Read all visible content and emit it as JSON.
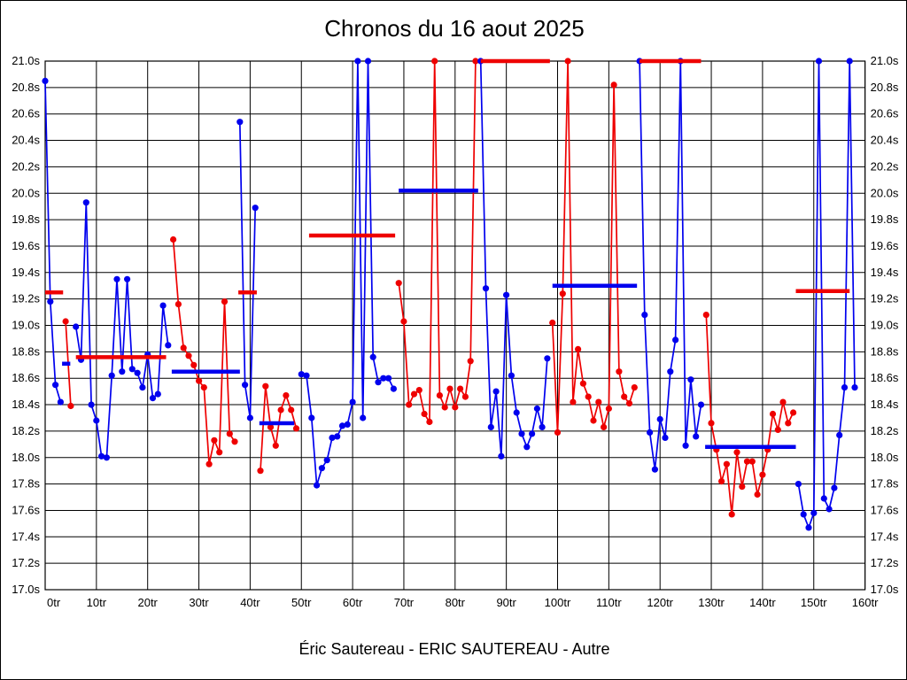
{
  "title": "Chronos du 16 aout 2025",
  "footer": "Éric Sautereau - ERIC SAUTEREAU - Autre",
  "chart_data": {
    "type": "line",
    "title": "Chronos du 16 aout 2025",
    "xlabel_unit": "tr",
    "ylabel_unit": "s",
    "xlim": [
      0,
      160
    ],
    "ylim": [
      17.0,
      21.0
    ],
    "y_step": 0.2,
    "x_step": 10,
    "grid": true,
    "y_tick_labels": [
      "21.0s",
      "20.8s",
      "20.6s",
      "20.4s",
      "20.2s",
      "20.0s",
      "19.8s",
      "19.6s",
      "19.4s",
      "19.2s",
      "19.0s",
      "18.8s",
      "18.6s",
      "18.4s",
      "18.2s",
      "18.0s",
      "17.8s",
      "17.6s",
      "17.4s",
      "17.2s",
      "17.0s"
    ],
    "x_tick_labels": [
      "0tr",
      "10tr",
      "20tr",
      "30tr",
      "40tr",
      "50tr",
      "60tr",
      "70tr",
      "80tr",
      "90tr",
      "100tr",
      "110tr",
      "120tr",
      "130tr",
      "140tr",
      "150tr",
      "160tr"
    ],
    "colors": {
      "blue": "#0000ee",
      "red": "#ee0000"
    },
    "clip_value": 21.0,
    "series": [
      {
        "color": "blue",
        "start_lap": 0,
        "values": [
          20.85,
          19.18,
          18.55,
          18.42
        ]
      },
      {
        "color": "red",
        "start_lap": 4,
        "values": [
          19.03,
          18.39
        ]
      },
      {
        "color": "blue",
        "start_lap": 6,
        "values": [
          18.99,
          18.74,
          19.93,
          18.4,
          18.28,
          18.01,
          18.0,
          18.62,
          19.35,
          18.65,
          19.35,
          18.67,
          18.64,
          18.53,
          18.78,
          18.45,
          18.48,
          19.15,
          18.85
        ]
      },
      {
        "color": "red",
        "start_lap": 25,
        "values": [
          19.65,
          19.16,
          18.83,
          18.77,
          18.7,
          18.58,
          18.53,
          17.95,
          18.13,
          18.04,
          19.18,
          18.18,
          18.12
        ]
      },
      {
        "color": "blue",
        "start_lap": 38,
        "values": [
          20.54,
          18.55,
          18.3,
          19.89
        ]
      },
      {
        "color": "red",
        "start_lap": 42,
        "values": [
          17.9,
          18.54,
          18.23,
          18.09,
          18.36,
          18.47,
          18.36,
          18.22
        ]
      },
      {
        "color": "blue",
        "start_lap": 50,
        "values": [
          18.63,
          18.62,
          18.3,
          17.79,
          17.92,
          17.98,
          18.15,
          18.16,
          18.24,
          18.25,
          18.42,
          21.0,
          18.3,
          21.0,
          18.76,
          18.57,
          18.6,
          18.6,
          18.52
        ]
      },
      {
        "color": "red",
        "start_lap": 69,
        "values": [
          19.32,
          19.03,
          18.4,
          18.48,
          18.51,
          18.33,
          18.27,
          21.0,
          18.47,
          18.38,
          18.52,
          18.38,
          18.52,
          18.46,
          18.73,
          21.0
        ]
      },
      {
        "color": "blue",
        "start_lap": 85,
        "values": [
          21.0,
          19.28,
          18.23,
          18.5,
          18.01,
          19.23,
          18.62,
          18.34,
          18.18,
          18.08,
          18.18,
          18.37,
          18.23,
          18.75
        ]
      },
      {
        "color": "red",
        "start_lap": 99,
        "values": [
          19.02,
          18.19,
          19.24,
          21.0,
          18.42,
          18.82,
          18.56,
          18.46,
          18.28,
          18.42,
          18.23,
          18.37,
          20.82,
          18.65,
          18.46,
          18.41,
          18.53
        ]
      },
      {
        "color": "blue",
        "start_lap": 116,
        "values": [
          21.0,
          19.08,
          18.19,
          17.91,
          18.29,
          18.15,
          18.65,
          18.89,
          21.0,
          18.09,
          18.59,
          18.16,
          18.4
        ]
      },
      {
        "color": "red",
        "start_lap": 129,
        "values": [
          19.08,
          18.26,
          18.06,
          17.82,
          17.95,
          17.57,
          18.04,
          17.78,
          17.97,
          17.97,
          17.72,
          17.87,
          18.06,
          18.33,
          18.21,
          18.42,
          18.26,
          18.34
        ]
      },
      {
        "color": "blue",
        "start_lap": 147,
        "values": [
          17.8,
          17.57,
          17.47,
          17.58,
          21.0,
          17.69,
          17.61,
          17.77,
          18.17,
          18.53,
          21.0,
          18.53
        ]
      }
    ],
    "stint_averages": [
      {
        "color": "red",
        "from": 0,
        "to": 3.5,
        "value": 19.25
      },
      {
        "color": "blue",
        "from": 3.3,
        "to": 4.9,
        "value": 18.71
      },
      {
        "color": "red",
        "from": 6,
        "to": 23.6,
        "value": 18.76
      },
      {
        "color": "blue",
        "from": 24.7,
        "to": 38,
        "value": 18.65
      },
      {
        "color": "red",
        "from": 37.7,
        "to": 41.3,
        "value": 19.25
      },
      {
        "color": "blue",
        "from": 41.8,
        "to": 48.6,
        "value": 18.26
      },
      {
        "color": "red",
        "from": 51.5,
        "to": 68.3,
        "value": 19.68
      },
      {
        "color": "blue",
        "from": 69,
        "to": 84.5,
        "value": 20.02
      },
      {
        "color": "red",
        "from": 85,
        "to": 98.5,
        "value": 21.0
      },
      {
        "color": "blue",
        "from": 99,
        "to": 115.5,
        "value": 19.3
      },
      {
        "color": "red",
        "from": 116,
        "to": 128,
        "value": 21.0
      },
      {
        "color": "blue",
        "from": 128.8,
        "to": 146.5,
        "value": 18.08
      },
      {
        "color": "red",
        "from": 146.5,
        "to": 157,
        "value": 19.26
      }
    ]
  }
}
